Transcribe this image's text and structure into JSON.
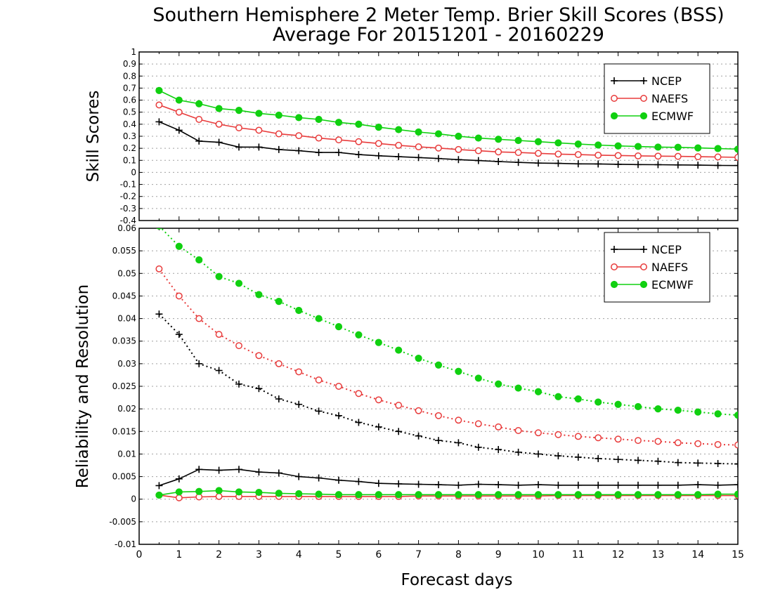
{
  "title_line1": "Southern Hemisphere 2 Meter Temp. Brier Skill Scores (BSS)",
  "title_line2": "Average For 20151201 - 20160229",
  "colors": {
    "NCEP": "#000000",
    "NAEFS": "#e83c3c",
    "ECMWF": "#10d010"
  },
  "chart_data": [
    {
      "type": "line",
      "ylabel": "Skill Scores",
      "xlabel": "",
      "xlim": [
        0,
        15
      ],
      "ylim": [
        -0.4,
        1.0
      ],
      "yticks": [
        "-0.4",
        "-0.3",
        "-0.2",
        "-0.1",
        "0",
        "0.1",
        "0.2",
        "0.3",
        "0.4",
        "0.5",
        "0.6",
        "0.7",
        "0.8",
        "0.9",
        "1"
      ],
      "legend_position": "top-right",
      "grid": true,
      "x": [
        0.5,
        1,
        1.5,
        2,
        2.5,
        3,
        3.5,
        4,
        4.5,
        5,
        5.5,
        6,
        6.5,
        7,
        7.5,
        8,
        8.5,
        9,
        9.5,
        10,
        10.5,
        11,
        11.5,
        12,
        12.5,
        13,
        13.5,
        14,
        14.5,
        15
      ],
      "series": [
        {
          "name": "NCEP",
          "marker": "plus",
          "style": "solid",
          "values": [
            0.42,
            0.35,
            0.26,
            0.25,
            0.21,
            0.21,
            0.19,
            0.18,
            0.165,
            0.165,
            0.148,
            0.138,
            0.13,
            0.123,
            0.115,
            0.106,
            0.098,
            0.09,
            0.083,
            0.077,
            0.075,
            0.071,
            0.07,
            0.067,
            0.065,
            0.064,
            0.062,
            0.06,
            0.058,
            0.057
          ]
        },
        {
          "name": "NAEFS",
          "marker": "open-circle",
          "style": "solid",
          "values": [
            0.56,
            0.5,
            0.44,
            0.4,
            0.37,
            0.35,
            0.32,
            0.305,
            0.285,
            0.27,
            0.255,
            0.24,
            0.225,
            0.212,
            0.202,
            0.19,
            0.18,
            0.17,
            0.165,
            0.158,
            0.152,
            0.148,
            0.143,
            0.14,
            0.137,
            0.135,
            0.133,
            0.13,
            0.128,
            0.125
          ]
        },
        {
          "name": "ECMWF",
          "marker": "filled-circle",
          "style": "solid",
          "values": [
            0.68,
            0.6,
            0.57,
            0.53,
            0.515,
            0.49,
            0.475,
            0.455,
            0.44,
            0.415,
            0.4,
            0.375,
            0.355,
            0.335,
            0.32,
            0.3,
            0.285,
            0.275,
            0.265,
            0.255,
            0.245,
            0.235,
            0.227,
            0.22,
            0.215,
            0.21,
            0.208,
            0.203,
            0.198,
            0.193
          ]
        }
      ]
    },
    {
      "type": "line",
      "ylabel": "Reliability and Resolution",
      "xlabel": "Forecast days",
      "xlim": [
        0,
        15
      ],
      "ylim": [
        -0.01,
        0.06
      ],
      "xticks": [
        "0",
        "1",
        "2",
        "3",
        "4",
        "5",
        "6",
        "7",
        "8",
        "9",
        "10",
        "11",
        "12",
        "13",
        "14",
        "15"
      ],
      "yticks": [
        "-0.01",
        "-0.005",
        "0",
        "0.005",
        "0.01",
        "0.015",
        "0.02",
        "0.025",
        "0.03",
        "0.035",
        "0.04",
        "0.045",
        "0.05",
        "0.055",
        "0.06"
      ],
      "legend_position": "top-right",
      "grid": true,
      "x": [
        0.5,
        1,
        1.5,
        2,
        2.5,
        3,
        3.5,
        4,
        4.5,
        5,
        5.5,
        6,
        6.5,
        7,
        7.5,
        8,
        8.5,
        9,
        9.5,
        10,
        10.5,
        11,
        11.5,
        12,
        12.5,
        13,
        13.5,
        14,
        14.5,
        15
      ],
      "series": [
        {
          "name": "NCEP",
          "marker": "plus",
          "style": "dotted",
          "values": [
            0.041,
            0.0365,
            0.03,
            0.0285,
            0.0255,
            0.0245,
            0.0222,
            0.021,
            0.0195,
            0.0185,
            0.017,
            0.016,
            0.015,
            0.014,
            0.013,
            0.0125,
            0.0115,
            0.011,
            0.0104,
            0.01,
            0.0096,
            0.0093,
            0.009,
            0.0088,
            0.0086,
            0.0084,
            0.0081,
            0.008,
            0.0079,
            0.0078
          ]
        },
        {
          "name": "NAEFS",
          "marker": "open-circle",
          "style": "dotted",
          "values": [
            0.051,
            0.045,
            0.04,
            0.0365,
            0.034,
            0.0318,
            0.03,
            0.0282,
            0.0264,
            0.025,
            0.0234,
            0.022,
            0.0208,
            0.0196,
            0.0185,
            0.0175,
            0.0167,
            0.016,
            0.0152,
            0.0147,
            0.0143,
            0.0139,
            0.0136,
            0.0133,
            0.013,
            0.0128,
            0.0125,
            0.0123,
            0.0121,
            0.012
          ]
        },
        {
          "name": "ECMWF",
          "marker": "filled-circle",
          "style": "dotted",
          "values": [
            0.0605,
            0.056,
            0.053,
            0.0493,
            0.0478,
            0.0453,
            0.0438,
            0.0418,
            0.04,
            0.0382,
            0.0364,
            0.0347,
            0.033,
            0.0312,
            0.0297,
            0.0283,
            0.0268,
            0.0255,
            0.0246,
            0.0238,
            0.0227,
            0.0222,
            0.0215,
            0.021,
            0.0205,
            0.02,
            0.0197,
            0.0193,
            0.0189,
            0.0186
          ]
        },
        {
          "name": "NCEP",
          "marker": "plus",
          "style": "solid",
          "legend": false,
          "values": [
            0.003,
            0.0045,
            0.0066,
            0.0064,
            0.0066,
            0.006,
            0.0058,
            0.005,
            0.0047,
            0.0042,
            0.0039,
            0.0035,
            0.0034,
            0.0033,
            0.0032,
            0.0031,
            0.0033,
            0.0032,
            0.0031,
            0.0032,
            0.0031,
            0.0031,
            0.0031,
            0.0031,
            0.0031,
            0.0031,
            0.0031,
            0.0032,
            0.0031,
            0.0032
          ]
        },
        {
          "name": "NAEFS",
          "marker": "open-circle",
          "style": "solid",
          "legend": false,
          "values": [
            0.0009,
            0.0003,
            0.0005,
            0.0006,
            0.0006,
            0.0006,
            0.0006,
            0.0006,
            0.0006,
            0.0006,
            0.0006,
            0.0006,
            0.0006,
            0.0007,
            0.0007,
            0.0007,
            0.0007,
            0.0007,
            0.0007,
            0.0007,
            0.0008,
            0.0008,
            0.0008,
            0.0008,
            0.0008,
            0.0008,
            0.0008,
            0.0008,
            0.0008,
            0.0008
          ]
        },
        {
          "name": "ECMWF",
          "marker": "filled-circle",
          "style": "solid",
          "legend": false,
          "values": [
            0.0009,
            0.0016,
            0.0017,
            0.0019,
            0.0016,
            0.0015,
            0.0013,
            0.0012,
            0.0011,
            0.001,
            0.001,
            0.001,
            0.001,
            0.001,
            0.001,
            0.001,
            0.001,
            0.001,
            0.001,
            0.001,
            0.001,
            0.001,
            0.001,
            0.001,
            0.001,
            0.001,
            0.001,
            0.001,
            0.0011,
            0.0011
          ]
        }
      ]
    }
  ]
}
